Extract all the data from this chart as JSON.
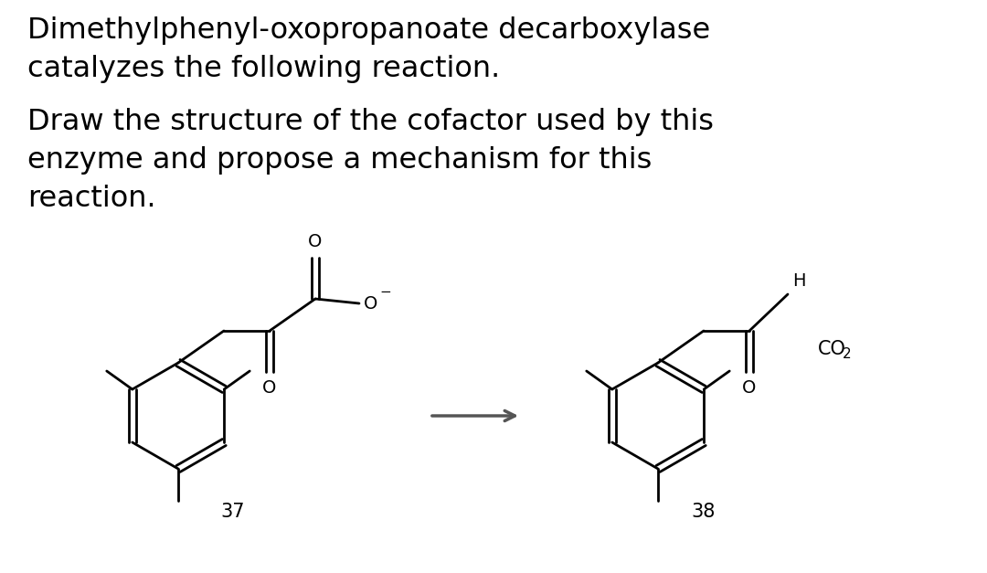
{
  "background_color": "#ffffff",
  "text_color": "#000000",
  "line_color": "#000000",
  "title_line1": "Dimethylphenyl-oxopropanoate decarboxylase",
  "title_line2": "catalyzes the following reaction.",
  "subtitle_line1": "Draw the structure of the cofactor used by this",
  "subtitle_line2": "enzyme and propose a mechanism for this",
  "subtitle_line3": "reaction.",
  "label_37": "37",
  "label_38": "38",
  "arrow_color": "#555555",
  "font_size_title": 23,
  "font_size_label": 15,
  "font_size_atom": 14
}
